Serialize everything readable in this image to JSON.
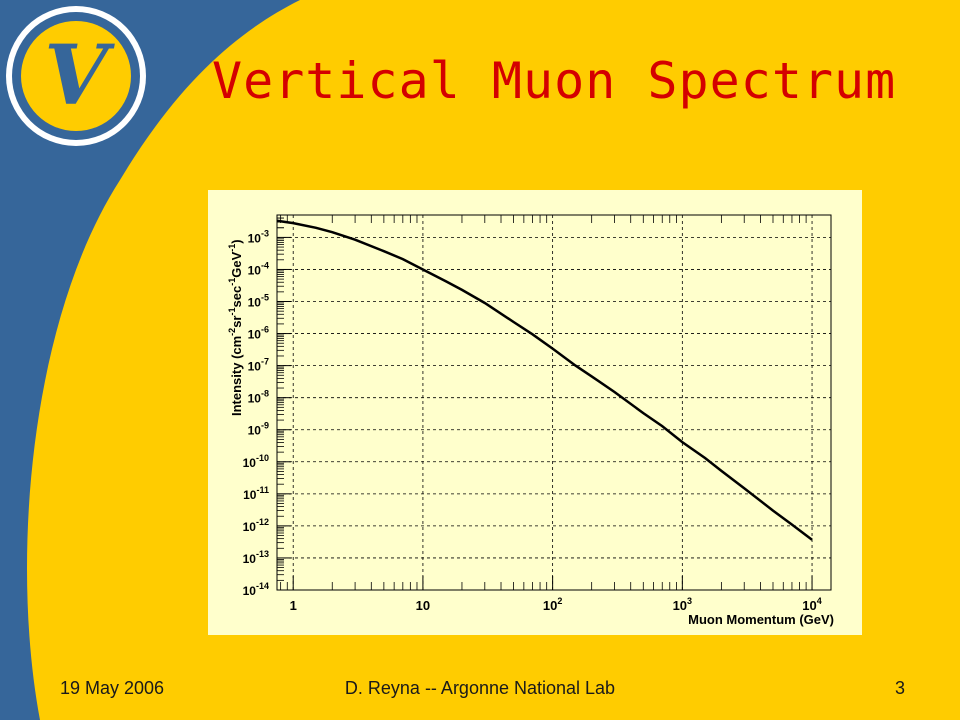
{
  "slide": {
    "title": "Vertical Muon Spectrum",
    "footer_left": "19 May 2006",
    "footer_center": "D. Reyna -- Argonne National Lab",
    "footer_right": "3",
    "logo_letter": "V"
  },
  "colors": {
    "slide_blue": "#36669a",
    "slide_yellow": "#ffcc00",
    "title_red": "#d40000",
    "plot_panel": "#ffffcc",
    "logo_outer": "#ffffff",
    "logo_ring": "#36669a",
    "logo_inner": "#ffcc00",
    "logo_letter": "#36669a"
  },
  "chart_data": {
    "type": "line",
    "x_scale": "log",
    "y_scale": "log",
    "xlim": [
      0.75,
      14000
    ],
    "ylim": [
      1e-14,
      0.005
    ],
    "xlabel": "Muon Momentum (GeV)",
    "ylabel": "Intensity (cm-2sr-1sec-1GeV-1)",
    "ylabel_parts": {
      "a": "Intensity (cm",
      "b": "-2",
      "c": "sr",
      "d": "-1",
      "e": "sec",
      "f": "-1",
      "g": "GeV",
      "h": "-1",
      "i": ")"
    },
    "grid": true,
    "x_ticks": [
      {
        "value": 1,
        "base": "1",
        "exp": ""
      },
      {
        "value": 10,
        "base": "10",
        "exp": ""
      },
      {
        "value": 100,
        "base": "10",
        "exp": "2"
      },
      {
        "value": 1000,
        "base": "10",
        "exp": "3"
      },
      {
        "value": 10000,
        "base": "10",
        "exp": "4"
      }
    ],
    "y_ticks": [
      {
        "value": 0.001,
        "base": "10",
        "exp": "-3"
      },
      {
        "value": 0.0001,
        "base": "10",
        "exp": "-4"
      },
      {
        "value": 1e-05,
        "base": "10",
        "exp": "-5"
      },
      {
        "value": 1e-06,
        "base": "10",
        "exp": "-6"
      },
      {
        "value": 1e-07,
        "base": "10",
        "exp": "-7"
      },
      {
        "value": 1e-08,
        "base": "10",
        "exp": "-8"
      },
      {
        "value": 1e-09,
        "base": "10",
        "exp": "-9"
      },
      {
        "value": 1e-10,
        "base": "10",
        "exp": "-10"
      },
      {
        "value": 1e-11,
        "base": "10",
        "exp": "-11"
      },
      {
        "value": 1e-12,
        "base": "10",
        "exp": "-12"
      },
      {
        "value": 1e-13,
        "base": "10",
        "exp": "-13"
      },
      {
        "value": 1e-14,
        "base": "10",
        "exp": "-14"
      }
    ],
    "series": [
      {
        "x": [
          0.75,
          1,
          1.5,
          2,
          3,
          5,
          7,
          10,
          15,
          20,
          30,
          50,
          70,
          100,
          150,
          200,
          300,
          500,
          700,
          1000,
          1500,
          2000,
          3000,
          5000,
          7000,
          10000
        ],
        "y": [
          0.0033,
          0.0028,
          0.002,
          0.00145,
          0.00085,
          0.00037,
          0.00021,
          0.0001,
          4.3e-05,
          2.3e-05,
          9e-06,
          2.3e-06,
          9.5e-07,
          3.4e-07,
          1e-07,
          4.6e-08,
          1.5e-08,
          3.3e-09,
          1.3e-09,
          4.1e-10,
          1.3e-10,
          5.2e-11,
          1.5e-11,
          3e-12,
          1.1e-12,
          3.7e-13
        ]
      }
    ]
  }
}
